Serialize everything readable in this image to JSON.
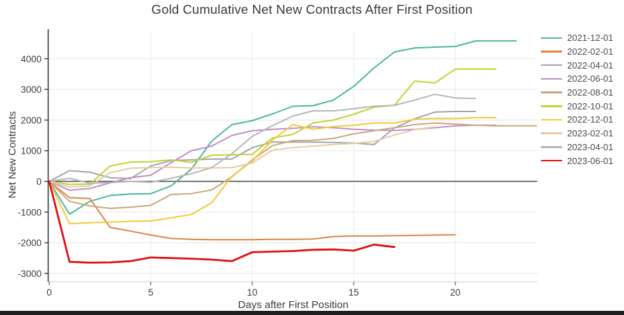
{
  "chart_data": {
    "type": "line",
    "title": "Gold Cumulative Net New Contracts After First Position",
    "xlabel": "Days after First Position",
    "ylabel": "Net New Contracts",
    "xlim": [
      0,
      24
    ],
    "ylim": [
      -3200,
      4750
    ],
    "xticks": [
      0,
      5,
      10,
      15,
      20
    ],
    "yticks": [
      -3000,
      -2000,
      -1000,
      0,
      1000,
      2000,
      3000,
      4000
    ],
    "grid": true,
    "legend_position": "right",
    "zero_line": 0,
    "x_unit": "days_after_first_position",
    "series": [
      {
        "name": "2021-12-01",
        "color": "#4db6a2",
        "values": [
          0,
          -1070,
          -650,
          -460,
          -410,
          -400,
          -150,
          400,
          1310,
          1850,
          1980,
          2200,
          2450,
          2470,
          2650,
          3100,
          3700,
          4220,
          4350,
          4380,
          4400,
          4580,
          4580,
          4580
        ]
      },
      {
        "name": "2022-02-01",
        "color": "#e08548",
        "values": [
          0,
          -530,
          -560,
          -1500,
          -1620,
          -1750,
          -1860,
          -1890,
          -1900,
          -1900,
          -1900,
          -1890,
          -1890,
          -1880,
          -1800,
          -1780,
          -1780,
          -1770,
          -1760,
          -1750,
          -1740
        ]
      },
      {
        "name": "2022-04-01",
        "color": "#a6a3ad",
        "values": [
          0,
          350,
          300,
          120,
          90,
          500,
          680,
          700,
          730,
          730,
          1100,
          1280,
          1280,
          1280,
          1270,
          1250,
          1200,
          1740,
          2040,
          2260,
          2280,
          2280
        ]
      },
      {
        "name": "2022-06-01",
        "color": "#c48ccb",
        "values": [
          0,
          -290,
          -230,
          -50,
          120,
          200,
          610,
          1000,
          1150,
          1500,
          1650,
          1700,
          1730,
          1780,
          1750,
          1700,
          1670,
          1660,
          1700,
          1750,
          1810,
          1830,
          1830
        ]
      },
      {
        "name": "2022-08-01",
        "color": "#c9a87c",
        "values": [
          0,
          -650,
          -800,
          -880,
          -840,
          -780,
          -430,
          -400,
          -280,
          150,
          700,
          1170,
          1330,
          1340,
          1400,
          1550,
          1650,
          1750,
          1850,
          1900,
          1870,
          1830,
          1810,
          1810,
          1810
        ]
      },
      {
        "name": "2022-10-01",
        "color": "#c0d335",
        "values": [
          0,
          -100,
          -90,
          500,
          630,
          640,
          700,
          620,
          850,
          870,
          880,
          1420,
          1530,
          1900,
          2000,
          2190,
          2420,
          2480,
          3270,
          3210,
          3660,
          3660,
          3660
        ]
      },
      {
        "name": "2022-12-01",
        "color": "#f1ca3b",
        "values": [
          0,
          -1380,
          -1350,
          -1330,
          -1300,
          -1290,
          -1190,
          -1080,
          -700,
          170,
          660,
          1350,
          1850,
          1700,
          1790,
          1830,
          1900,
          1900,
          2030,
          2050,
          2050,
          2080,
          2080
        ]
      },
      {
        "name": "2023-02-01",
        "color": "#e5cda3",
        "values": [
          0,
          -180,
          -150,
          280,
          430,
          450,
          460,
          440,
          440,
          450,
          600,
          1020,
          1100,
          1150,
          1200,
          1240,
          1300,
          1510,
          1690,
          1780
        ]
      },
      {
        "name": "2023-04-01",
        "color": "#b7b7b7",
        "values": [
          0,
          100,
          -60,
          -40,
          0,
          -30,
          100,
          250,
          450,
          900,
          1470,
          1820,
          2130,
          2300,
          2300,
          2370,
          2450,
          2480,
          2650,
          2840,
          2720,
          2700
        ]
      },
      {
        "name": "2023-06-01",
        "color": "#e01212",
        "values": [
          0,
          -2620,
          -2650,
          -2640,
          -2600,
          -2480,
          -2500,
          -2520,
          -2550,
          -2600,
          -2310,
          -2290,
          -2270,
          -2230,
          -2220,
          -2260,
          -2060,
          -2140
        ]
      }
    ]
  }
}
